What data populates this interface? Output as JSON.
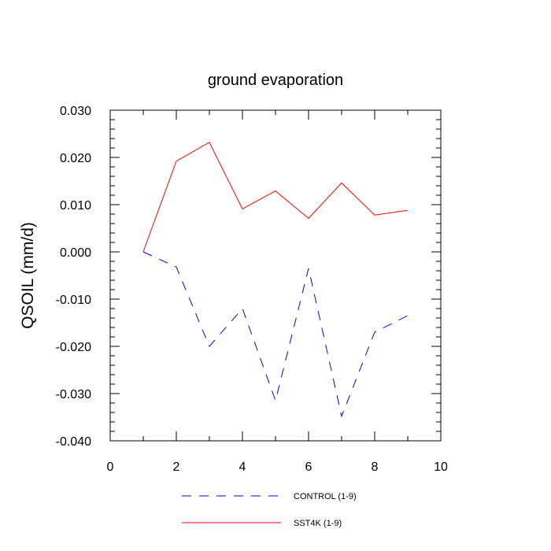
{
  "chart_data": {
    "type": "line",
    "title": "ground evaporation",
    "xlabel": "",
    "ylabel": "QSOIL  (mm/d)",
    "xlim": [
      0,
      10
    ],
    "ylim": [
      -0.04,
      0.03
    ],
    "x_ticks": [
      "0",
      "2",
      "4",
      "6",
      "8",
      "10"
    ],
    "y_ticks": [
      "0.030",
      "0.020",
      "0.010",
      "0.000",
      "-0.010",
      "-0.020",
      "-0.030",
      "-0.040"
    ],
    "grid": false,
    "legend_position": "bottom",
    "series": [
      {
        "name": "CONTROL (1-9)",
        "color": "#0000ff",
        "style": "dashed",
        "x": [
          1,
          2,
          3,
          4,
          5,
          6,
          7,
          8,
          9
        ],
        "y": [
          0.0,
          -0.0032,
          -0.02,
          -0.012,
          -0.0315,
          -0.0035,
          -0.0348,
          -0.017,
          -0.0135
        ]
      },
      {
        "name": "SST4K (1-9)",
        "color": "#ff0000",
        "style": "solid",
        "x": [
          1,
          2,
          3,
          4,
          5,
          6,
          7,
          8,
          9
        ],
        "y": [
          0.0,
          0.0192,
          0.0232,
          0.0091,
          0.0129,
          0.0071,
          0.0146,
          0.0078,
          0.0088
        ]
      }
    ]
  }
}
